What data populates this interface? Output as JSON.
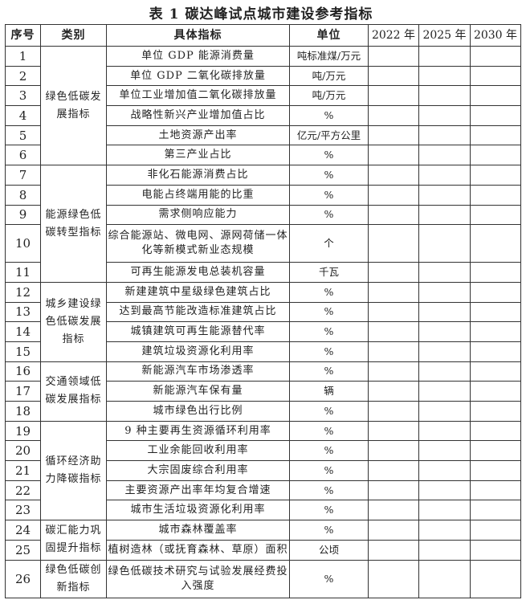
{
  "title": "表 1  碳达峰试点城市建设参考指标",
  "headers": [
    "序号",
    "类别",
    "具体指标",
    "单位",
    "2022 年",
    "2025 年",
    "2030 年"
  ],
  "categories": [
    {
      "label": "绿色低碳发展指标",
      "rows": [
        1,
        6
      ]
    },
    {
      "label": "能源绿色低碳转型指标",
      "rows": [
        7,
        11
      ]
    },
    {
      "label": "城乡建设绿色低碳发展指标",
      "rows": [
        12,
        15
      ]
    },
    {
      "label": "交通领域低碳发展指标",
      "rows": [
        16,
        18
      ]
    },
    {
      "label": "循环经济助力降碳指标",
      "rows": [
        19,
        23
      ]
    },
    {
      "label": "碳汇能力巩固提升指标",
      "rows": [
        24,
        25
      ]
    },
    {
      "label": "绿色低碳创新指标",
      "rows": [
        26,
        26
      ]
    }
  ],
  "rows": [
    {
      "no": "1",
      "indicator": "单位 GDP 能源消费量",
      "unit": "吨标准煤/万元"
    },
    {
      "no": "2",
      "indicator": "单位 GDP 二氧化碳排放量",
      "unit": "吨/万元"
    },
    {
      "no": "3",
      "indicator": "单位工业增加值二氧化碳排放量",
      "unit": "吨/万元"
    },
    {
      "no": "4",
      "indicator": "战略性新兴产业增加值占比",
      "unit": "%"
    },
    {
      "no": "5",
      "indicator": "土地资源产出率",
      "unit": "亿元/平方公里"
    },
    {
      "no": "6",
      "indicator": "第三产业占比",
      "unit": "%"
    },
    {
      "no": "7",
      "indicator": "非化石能源消费占比",
      "unit": "%"
    },
    {
      "no": "8",
      "indicator": "电能占终端用能的比重",
      "unit": "%"
    },
    {
      "no": "9",
      "indicator": "需求侧响应能力",
      "unit": "%"
    },
    {
      "no": "10",
      "indicator": "综合能源站、微电网、源网荷储一体化等新模式新业态规模",
      "unit": "个"
    },
    {
      "no": "11",
      "indicator": "可再生能源发电总装机容量",
      "unit": "千瓦"
    },
    {
      "no": "12",
      "indicator": "新建建筑中星级绿色建筑占比",
      "unit": "%"
    },
    {
      "no": "13",
      "indicator": "达到最高节能改造标准建筑占比",
      "unit": "%"
    },
    {
      "no": "14",
      "indicator": "城镇建筑可再生能源替代率",
      "unit": "%"
    },
    {
      "no": "15",
      "indicator": "建筑垃圾资源化利用率",
      "unit": "%"
    },
    {
      "no": "16",
      "indicator": "新能源汽车市场渗透率",
      "unit": "%"
    },
    {
      "no": "17",
      "indicator": "新能源汽车保有量",
      "unit": "辆"
    },
    {
      "no": "18",
      "indicator": "城市绿色出行比例",
      "unit": "%"
    },
    {
      "no": "19",
      "indicator": "9 种主要再生资源循环利用率",
      "unit": "%"
    },
    {
      "no": "20",
      "indicator": "工业余能回收利用率",
      "unit": "%"
    },
    {
      "no": "21",
      "indicator": "大宗固废综合利用率",
      "unit": "%"
    },
    {
      "no": "22",
      "indicator": "主要资源产出率年均复合增速",
      "unit": "%"
    },
    {
      "no": "23",
      "indicator": "城市生活垃圾资源化利用率",
      "unit": "%"
    },
    {
      "no": "24",
      "indicator": "城市森林覆盖率",
      "unit": "%"
    },
    {
      "no": "25",
      "indicator": "植树造林（或抚育森林、草原）面积",
      "unit": "公顷"
    },
    {
      "no": "26",
      "indicator": "绿色低碳技术研究与试验发展经费投入强度",
      "unit": "%"
    }
  ]
}
